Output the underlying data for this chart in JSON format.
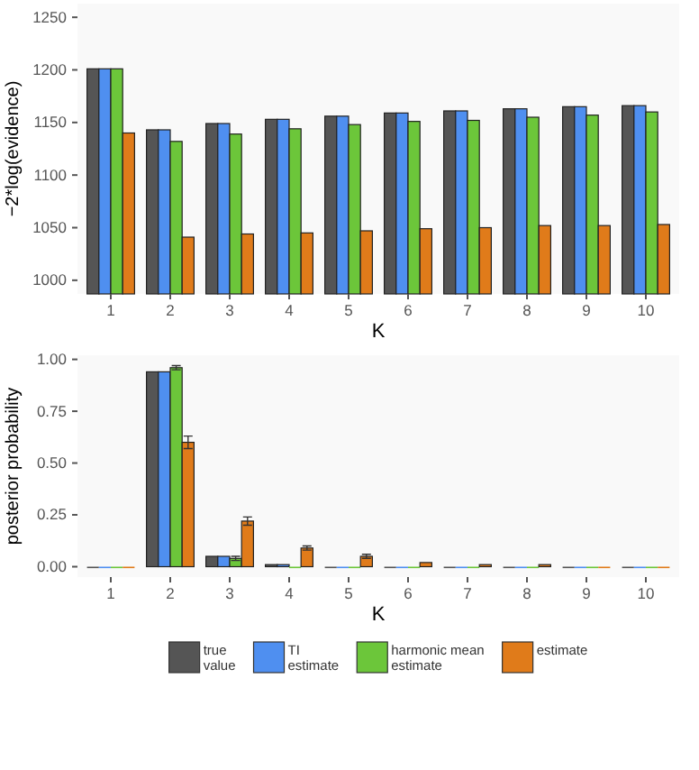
{
  "chart_data": [
    {
      "type": "bar",
      "xlabel": "K",
      "ylabel": "−2*log(evidence)",
      "categories": [
        "1",
        "2",
        "3",
        "4",
        "5",
        "6",
        "7",
        "8",
        "9",
        "10"
      ],
      "ylim": [
        987,
        1263
      ],
      "yticks": [
        1000,
        1050,
        1100,
        1150,
        1200,
        1250
      ],
      "grid": false,
      "legend": false,
      "series": [
        {
          "color": "#555555",
          "values": [
            1201,
            1143,
            1149,
            1153,
            1156,
            1159,
            1161,
            1163,
            1165,
            1166
          ]
        },
        {
          "color": "#4f8ff0",
          "values": [
            1201,
            1143,
            1149,
            1153,
            1156,
            1159,
            1161,
            1163,
            1165,
            1166
          ]
        },
        {
          "color": "#6cc63a",
          "values": [
            1201,
            1132,
            1139,
            1144,
            1148,
            1151,
            1152,
            1155,
            1157,
            1160
          ]
        },
        {
          "color": "#e07b1a",
          "values": [
            1140,
            1041,
            1044,
            1045,
            1047,
            1049,
            1050,
            1052,
            1052,
            1053
          ]
        }
      ]
    },
    {
      "type": "bar",
      "xlabel": "K",
      "ylabel": "posterior probability",
      "categories": [
        "1",
        "2",
        "3",
        "4",
        "5",
        "6",
        "7",
        "8",
        "9",
        "10"
      ],
      "ylim": [
        -0.05,
        1.02
      ],
      "yticks": [
        {
          "value": 0,
          "label": "0.00"
        },
        {
          "value": 0.25,
          "label": "0.25"
        },
        {
          "value": 0.5,
          "label": "0.50"
        },
        {
          "value": 0.75,
          "label": "0.75"
        },
        {
          "value": 1,
          "label": "1.00"
        }
      ],
      "grid": false,
      "legend": "bottom",
      "series": [
        {
          "name": "true value",
          "color": "#555555",
          "values": [
            0,
            0.94,
            0.05,
            0.01,
            0,
            0,
            0,
            0,
            0,
            0
          ]
        },
        {
          "name": "TI estimate",
          "color": "#4f8ff0",
          "values": [
            0,
            0.94,
            0.05,
            0.01,
            0,
            0,
            0,
            0,
            0,
            0
          ]
        },
        {
          "name": "harmonic mean estimate",
          "color": "#6cc63a",
          "values": [
            0,
            0.96,
            0.04,
            0,
            0,
            0,
            0,
            0,
            0,
            0
          ],
          "errors": [
            null,
            0.01,
            0.01,
            null,
            null,
            null,
            null,
            null,
            null,
            null
          ]
        },
        {
          "name": "estimate",
          "color": "#e07b1a",
          "values": [
            0,
            0.6,
            0.22,
            0.09,
            0.05,
            0.02,
            0.01,
            0.01,
            0,
            0
          ],
          "errors": [
            null,
            0.03,
            0.02,
            0.01,
            0.01,
            null,
            null,
            null,
            null,
            null
          ]
        }
      ]
    }
  ]
}
